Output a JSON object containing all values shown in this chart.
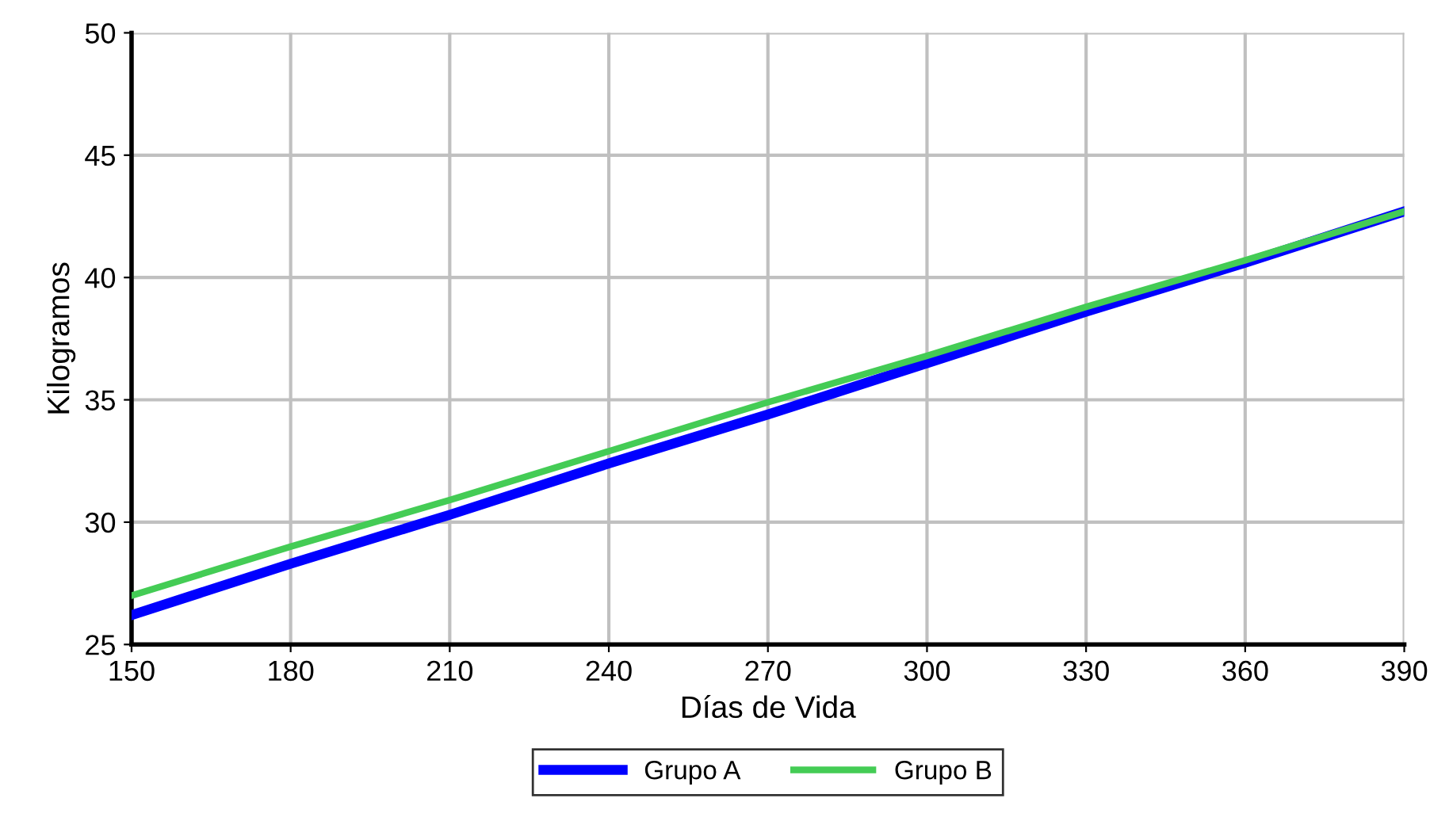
{
  "chart_data": {
    "type": "line",
    "xlabel": "Días de Vida",
    "ylabel": "Kilogramos",
    "x": [
      150,
      180,
      210,
      240,
      270,
      300,
      330,
      360,
      390
    ],
    "series": [
      {
        "name": "Grupo A",
        "color": "#0000ff",
        "values": [
          26.2,
          28.3,
          30.3,
          32.4,
          34.4,
          36.5,
          38.6,
          40.6,
          42.7
        ]
      },
      {
        "name": "Grupo B",
        "color": "#44cc55",
        "values": [
          27.0,
          29.0,
          30.9,
          32.9,
          34.9,
          36.8,
          38.8,
          40.7,
          42.7
        ]
      }
    ],
    "xlim": [
      150,
      390
    ],
    "xticks": [
      150,
      180,
      210,
      240,
      270,
      300,
      330,
      360,
      390
    ],
    "ylim": [
      25,
      50
    ],
    "yticks": [
      25,
      30,
      35,
      40,
      45,
      50
    ],
    "grid": true,
    "legend": "bottom",
    "marker": "none",
    "line_style": "solid"
  }
}
